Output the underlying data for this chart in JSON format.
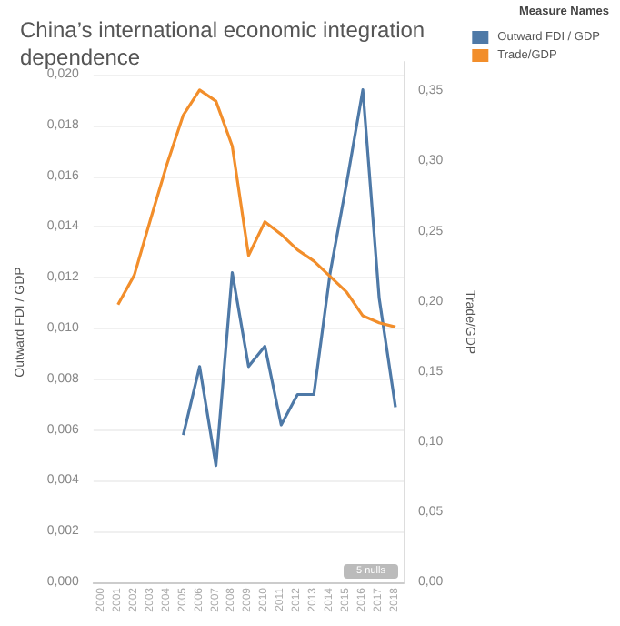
{
  "chart_data": {
    "type": "line",
    "title": "China’s international economic integration dependence",
    "ylabel": "Outward FDI / GDP",
    "y2label": "Trade/GDP",
    "legend_title": "Measure Names",
    "legend": "top right",
    "categories": [
      "2000",
      "2001",
      "2002",
      "2003",
      "2004",
      "2005",
      "2006",
      "2007",
      "2008",
      "2009",
      "2010",
      "2011",
      "2012",
      "2013",
      "2014",
      "2015",
      "2016",
      "2017",
      "2018"
    ],
    "series": [
      {
        "name": "Outward FDI / GDP",
        "color": "#4e79a7",
        "values": [
          null,
          null,
          null,
          null,
          null,
          0.0058,
          0.0085,
          0.0046,
          0.0122,
          0.0085,
          0.0093,
          0.0062,
          0.0074,
          0.0074,
          0.0122,
          0.0157,
          0.0194,
          0.0112,
          0.0069
        ]
      },
      {
        "name": "Trade/GDP",
        "color": "#f28e2b",
        "axis": "y2",
        "values": [
          null,
          0.198,
          0.219,
          0.259,
          0.298,
          0.333,
          0.351,
          0.343,
          0.311,
          0.233,
          0.257,
          0.248,
          0.237,
          0.229,
          0.218,
          0.207,
          0.19,
          0.185,
          0.182
        ]
      }
    ],
    "ylim": [
      0,
      0.0205
    ],
    "yticks": [
      {
        "value": 0,
        "label": "0,000"
      },
      {
        "value": 0.002,
        "label": "0,002"
      },
      {
        "value": 0.004,
        "label": "0,004"
      },
      {
        "value": 0.006,
        "label": "0,006"
      },
      {
        "value": 0.008,
        "label": "0,008"
      },
      {
        "value": 0.01,
        "label": "0,010"
      },
      {
        "value": 0.012,
        "label": "0,012"
      },
      {
        "value": 0.014,
        "label": "0,014"
      },
      {
        "value": 0.016,
        "label": "0,016"
      },
      {
        "value": 0.018,
        "label": "0,018"
      },
      {
        "value": 0.02,
        "label": "0,020"
      }
    ],
    "y2lim": [
      0,
      0.371
    ],
    "y2ticks": [
      {
        "value": 0,
        "label": "0,00"
      },
      {
        "value": 0.05,
        "label": "0,05"
      },
      {
        "value": 0.1,
        "label": "0,10"
      },
      {
        "value": 0.15,
        "label": "0,15"
      },
      {
        "value": 0.2,
        "label": "0,20"
      },
      {
        "value": 0.25,
        "label": "0,25"
      },
      {
        "value": 0.3,
        "label": "0,30"
      },
      {
        "value": 0.35,
        "label": "0,35"
      }
    ],
    "grid": "y",
    "marker": "none",
    "line_style": "solid",
    "annotations": [
      "5 nulls"
    ]
  }
}
